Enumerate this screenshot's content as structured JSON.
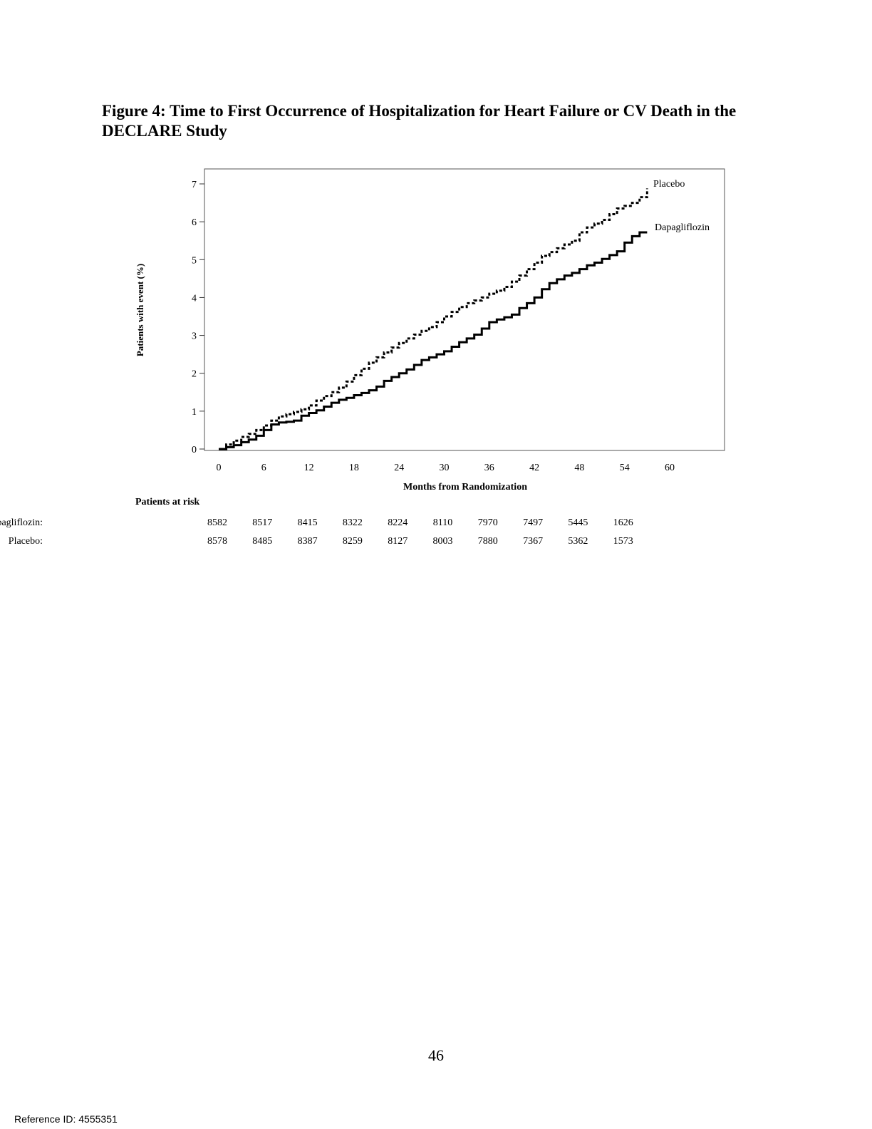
{
  "title": "Figure 4: Time to First Occurrence of Hospitalization for Heart Failure or CV Death in the DECLARE Study",
  "page_number": "46",
  "reference_id": "Reference ID: 4555351",
  "chart_data": {
    "type": "line",
    "title": "",
    "xlabel": "Months from Randomization",
    "ylabel": "Patients with event (%)",
    "xlim": [
      0,
      60
    ],
    "ylim": [
      0,
      7
    ],
    "xticks": [
      0,
      6,
      12,
      18,
      24,
      30,
      36,
      42,
      48,
      54,
      60
    ],
    "yticks": [
      0,
      1,
      2,
      3,
      4,
      5,
      6,
      7
    ],
    "grid": false,
    "series": [
      {
        "name": "Placebo",
        "style": "dashed",
        "color": "#000000",
        "x": [
          0,
          1,
          2,
          3,
          4,
          5,
          6,
          7,
          8,
          9,
          10,
          11,
          12,
          13,
          14,
          15,
          16,
          17,
          18,
          19,
          20,
          21,
          22,
          23,
          24,
          25,
          26,
          27,
          28,
          29,
          30,
          31,
          32,
          33,
          34,
          35,
          36,
          37,
          38,
          39,
          40,
          41,
          42,
          43,
          44,
          45,
          46,
          47,
          48,
          49,
          50,
          51,
          52,
          53,
          54,
          55,
          56,
          57
        ],
        "values": [
          0,
          0.12,
          0.22,
          0.32,
          0.4,
          0.5,
          0.62,
          0.75,
          0.86,
          0.92,
          0.98,
          1.05,
          1.15,
          1.28,
          1.4,
          1.5,
          1.62,
          1.78,
          1.95,
          2.12,
          2.28,
          2.42,
          2.55,
          2.68,
          2.8,
          2.92,
          3.02,
          3.12,
          3.22,
          3.35,
          3.5,
          3.62,
          3.75,
          3.85,
          3.92,
          4.0,
          4.1,
          4.18,
          4.28,
          4.42,
          4.58,
          4.75,
          4.92,
          5.1,
          5.2,
          5.3,
          5.4,
          5.5,
          5.72,
          5.85,
          5.95,
          6.05,
          6.2,
          6.35,
          6.42,
          6.5,
          6.65,
          6.88
        ]
      },
      {
        "name": "Dapagliflozin",
        "style": "solid",
        "color": "#000000",
        "x": [
          0,
          1,
          2,
          3,
          4,
          5,
          6,
          7,
          8,
          9,
          10,
          11,
          12,
          13,
          14,
          15,
          16,
          17,
          18,
          19,
          20,
          21,
          22,
          23,
          24,
          25,
          26,
          27,
          28,
          29,
          30,
          31,
          32,
          33,
          34,
          35,
          36,
          37,
          38,
          39,
          40,
          41,
          42,
          43,
          44,
          45,
          46,
          47,
          48,
          49,
          50,
          51,
          52,
          53,
          54,
          55,
          56,
          57
        ],
        "values": [
          0,
          0.05,
          0.1,
          0.18,
          0.25,
          0.35,
          0.5,
          0.65,
          0.7,
          0.72,
          0.75,
          0.88,
          0.95,
          1.02,
          1.12,
          1.22,
          1.3,
          1.35,
          1.42,
          1.48,
          1.55,
          1.65,
          1.8,
          1.9,
          2.0,
          2.1,
          2.22,
          2.35,
          2.42,
          2.5,
          2.58,
          2.7,
          2.82,
          2.92,
          3.02,
          3.18,
          3.35,
          3.42,
          3.48,
          3.55,
          3.72,
          3.85,
          4.0,
          4.22,
          4.38,
          4.48,
          4.58,
          4.65,
          4.75,
          4.85,
          4.92,
          5.02,
          5.12,
          5.22,
          5.45,
          5.62,
          5.72,
          5.72
        ]
      }
    ]
  },
  "risk_table": {
    "heading": "Patients at risk",
    "timepoints": [
      0,
      6,
      12,
      18,
      24,
      30,
      36,
      42,
      48,
      54
    ],
    "rows": [
      {
        "label": "Dapagliflozin:",
        "values": [
          "8582",
          "8517",
          "8415",
          "8322",
          "8224",
          "8110",
          "7970",
          "7497",
          "5445",
          "1626"
        ]
      },
      {
        "label": "Placebo:",
        "values": [
          "8578",
          "8485",
          "8387",
          "8259",
          "8127",
          "8003",
          "7880",
          "7367",
          "5362",
          "1573"
        ]
      }
    ]
  }
}
